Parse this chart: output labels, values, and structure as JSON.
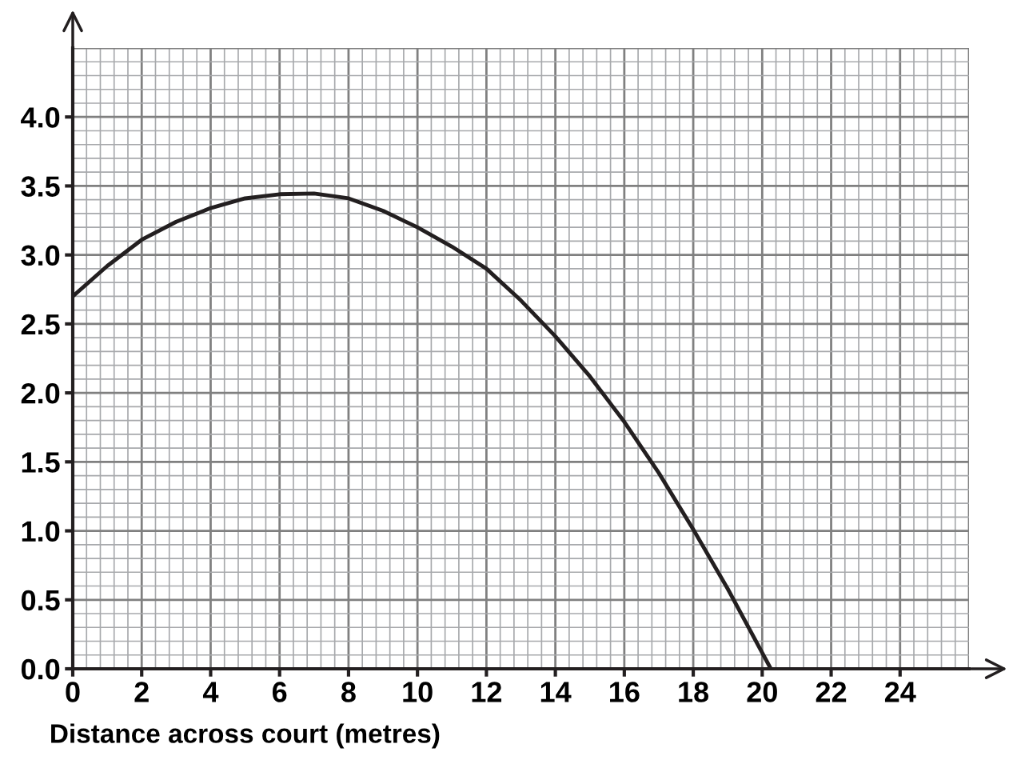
{
  "chart_data": {
    "type": "line",
    "xlabel": "Distance across court (metres)",
    "x": [
      0,
      1,
      2,
      3,
      4,
      5,
      6,
      7,
      8,
      9,
      10,
      11,
      12,
      13,
      14,
      15,
      16,
      17,
      18,
      19,
      20.25
    ],
    "series": [
      {
        "color": "#231f20",
        "values": [
          2.7,
          2.92,
          3.11,
          3.24,
          3.34,
          3.41,
          3.44,
          3.445,
          3.41,
          3.32,
          3.2,
          3.06,
          2.9,
          2.67,
          2.41,
          2.12,
          1.79,
          1.42,
          1.01,
          0.58,
          0
        ]
      }
    ],
    "xlim": [
      0,
      26
    ],
    "ylim": [
      0,
      4.5
    ],
    "xticks": [
      0,
      2,
      4,
      6,
      8,
      10,
      12,
      14,
      16,
      18,
      20,
      22,
      24
    ],
    "yticks": [
      {
        "value": 0,
        "label": "0.0"
      },
      {
        "value": 0.5,
        "label": "0.5"
      },
      {
        "value": 1,
        "label": "1.0"
      },
      {
        "value": 1.5,
        "label": "1.5"
      },
      {
        "value": 2,
        "label": "2.0"
      },
      {
        "value": 2.5,
        "label": "2.5"
      },
      {
        "value": 3,
        "label": "3.0"
      },
      {
        "value": 3.5,
        "label": "3.5"
      },
      {
        "value": 4,
        "label": "4.0"
      }
    ],
    "grid": true,
    "marker": "none",
    "line_style": "solid"
  }
}
